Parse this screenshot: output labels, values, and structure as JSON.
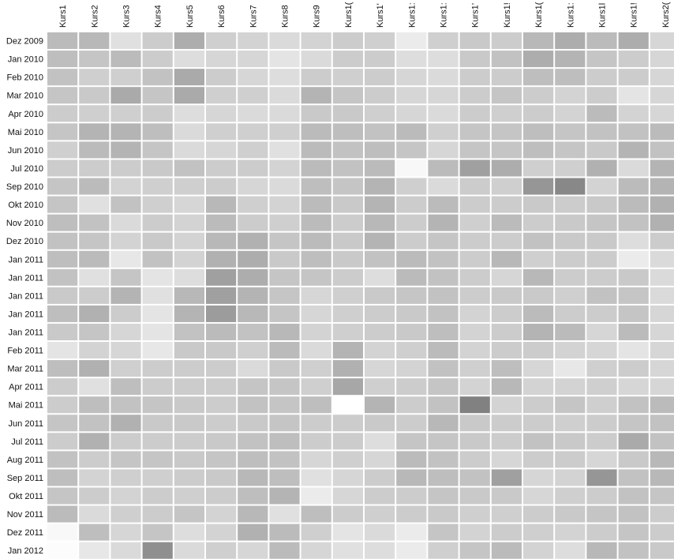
{
  "chart_data": {
    "type": "heatmap",
    "title": "",
    "xlabel": "",
    "ylabel": "",
    "x_categories": [
      "Kurs1",
      "Kurs2",
      "Kurs3",
      "Kurs4",
      "Kurs5",
      "Kurs6",
      "Kurs7",
      "Kurs8",
      "Kurs9",
      "Kurs1(",
      "Kurs1'",
      "Kurs1:",
      "Kurs1:",
      "Kurs1’",
      "Kurs1!",
      "Kurs1(",
      "Kurs1:",
      "Kurs1l",
      "Kurs1!",
      "Kurs2("
    ],
    "y_categories": [
      "Dez 2009",
      "Jan 2010",
      "Feb 2010",
      "Mar 2010",
      "Apr 2010",
      "Mai 2010",
      "Jun 2010",
      "Jul 2010",
      "Sep 2010",
      "Okt 2010",
      "Nov 2010",
      "Dez 2010",
      "Jan 2011",
      "Jan 2011",
      "Jan 2011",
      "Jan 2011",
      "Jan 2011",
      "Feb 2011",
      "Mar 2011",
      "Apr 2011",
      "Mai 2011",
      "Jun 2011",
      "Jul 2011",
      "Aug 2011",
      "Sep 2011",
      "Okt 2011",
      "Nov 2011",
      "Dez 2011",
      "Jan 2012"
    ],
    "color_scale": {
      "low": "#ffffff",
      "high": "#555555"
    },
    "values_range": [
      0,
      1
    ],
    "values": [
      [
        0.4,
        0.42,
        0.18,
        0.3,
        0.48,
        0.28,
        0.26,
        0.22,
        0.26,
        0.3,
        0.28,
        0.12,
        0.28,
        0.32,
        0.3,
        0.42,
        0.48,
        0.4,
        0.48,
        0.24
      ],
      [
        0.38,
        0.34,
        0.4,
        0.3,
        0.2,
        0.24,
        0.24,
        0.16,
        0.22,
        0.3,
        0.3,
        0.2,
        0.2,
        0.32,
        0.36,
        0.48,
        0.44,
        0.34,
        0.3,
        0.24
      ],
      [
        0.36,
        0.28,
        0.28,
        0.36,
        0.5,
        0.3,
        0.24,
        0.2,
        0.3,
        0.28,
        0.3,
        0.24,
        0.22,
        0.3,
        0.3,
        0.38,
        0.38,
        0.3,
        0.3,
        0.24
      ],
      [
        0.34,
        0.32,
        0.5,
        0.34,
        0.5,
        0.28,
        0.28,
        0.22,
        0.44,
        0.34,
        0.3,
        0.24,
        0.24,
        0.3,
        0.34,
        0.3,
        0.26,
        0.3,
        0.16,
        0.24
      ],
      [
        0.3,
        0.28,
        0.28,
        0.3,
        0.2,
        0.24,
        0.22,
        0.22,
        0.32,
        0.32,
        0.28,
        0.24,
        0.22,
        0.3,
        0.28,
        0.3,
        0.26,
        0.4,
        0.26,
        0.24
      ],
      [
        0.34,
        0.44,
        0.44,
        0.38,
        0.22,
        0.28,
        0.28,
        0.28,
        0.4,
        0.38,
        0.36,
        0.4,
        0.28,
        0.34,
        0.34,
        0.38,
        0.34,
        0.36,
        0.36,
        0.4
      ],
      [
        0.28,
        0.4,
        0.44,
        0.34,
        0.22,
        0.24,
        0.28,
        0.18,
        0.4,
        0.36,
        0.38,
        0.34,
        0.24,
        0.34,
        0.34,
        0.38,
        0.34,
        0.32,
        0.44,
        0.36
      ],
      [
        0.3,
        0.3,
        0.3,
        0.32,
        0.36,
        0.3,
        0.3,
        0.26,
        0.4,
        0.36,
        0.4,
        0.04,
        0.4,
        0.56,
        0.48,
        0.28,
        0.28,
        0.46,
        0.22,
        0.44
      ],
      [
        0.34,
        0.4,
        0.26,
        0.28,
        0.28,
        0.3,
        0.24,
        0.22,
        0.38,
        0.34,
        0.44,
        0.28,
        0.22,
        0.3,
        0.28,
        0.62,
        0.7,
        0.26,
        0.4,
        0.44
      ],
      [
        0.34,
        0.18,
        0.36,
        0.28,
        0.24,
        0.42,
        0.28,
        0.26,
        0.4,
        0.32,
        0.44,
        0.3,
        0.4,
        0.3,
        0.3,
        0.32,
        0.3,
        0.32,
        0.4,
        0.46
      ],
      [
        0.38,
        0.36,
        0.22,
        0.3,
        0.26,
        0.4,
        0.3,
        0.28,
        0.4,
        0.3,
        0.42,
        0.3,
        0.44,
        0.28,
        0.4,
        0.3,
        0.32,
        0.34,
        0.36,
        0.46
      ],
      [
        0.36,
        0.34,
        0.26,
        0.32,
        0.26,
        0.42,
        0.46,
        0.34,
        0.4,
        0.32,
        0.44,
        0.3,
        0.34,
        0.3,
        0.3,
        0.36,
        0.32,
        0.32,
        0.2,
        0.3
      ],
      [
        0.38,
        0.4,
        0.14,
        0.36,
        0.26,
        0.46,
        0.48,
        0.32,
        0.38,
        0.32,
        0.36,
        0.4,
        0.36,
        0.3,
        0.42,
        0.28,
        0.3,
        0.3,
        0.12,
        0.22
      ],
      [
        0.36,
        0.18,
        0.34,
        0.16,
        0.2,
        0.56,
        0.48,
        0.34,
        0.34,
        0.3,
        0.2,
        0.4,
        0.36,
        0.3,
        0.24,
        0.42,
        0.3,
        0.3,
        0.32,
        0.22
      ],
      [
        0.32,
        0.3,
        0.44,
        0.18,
        0.42,
        0.56,
        0.44,
        0.34,
        0.24,
        0.28,
        0.32,
        0.34,
        0.36,
        0.3,
        0.32,
        0.32,
        0.28,
        0.36,
        0.34,
        0.22
      ],
      [
        0.38,
        0.46,
        0.3,
        0.16,
        0.44,
        0.58,
        0.42,
        0.34,
        0.24,
        0.28,
        0.3,
        0.32,
        0.36,
        0.26,
        0.3,
        0.4,
        0.3,
        0.3,
        0.34,
        0.24
      ],
      [
        0.32,
        0.34,
        0.24,
        0.16,
        0.36,
        0.4,
        0.36,
        0.42,
        0.26,
        0.28,
        0.3,
        0.32,
        0.38,
        0.26,
        0.3,
        0.44,
        0.4,
        0.24,
        0.4,
        0.24
      ],
      [
        0.16,
        0.26,
        0.24,
        0.14,
        0.32,
        0.32,
        0.28,
        0.4,
        0.22,
        0.44,
        0.26,
        0.28,
        0.4,
        0.26,
        0.3,
        0.3,
        0.26,
        0.24,
        0.16,
        0.24
      ],
      [
        0.38,
        0.46,
        0.28,
        0.3,
        0.3,
        0.3,
        0.22,
        0.32,
        0.28,
        0.46,
        0.24,
        0.26,
        0.36,
        0.28,
        0.38,
        0.24,
        0.14,
        0.28,
        0.3,
        0.24
      ],
      [
        0.3,
        0.18,
        0.38,
        0.3,
        0.3,
        0.3,
        0.34,
        0.34,
        0.28,
        0.52,
        0.28,
        0.3,
        0.34,
        0.26,
        0.42,
        0.26,
        0.26,
        0.28,
        0.24,
        0.24
      ],
      [
        0.3,
        0.38,
        0.36,
        0.34,
        0.32,
        0.3,
        0.36,
        0.34,
        0.38,
        0.0,
        0.44,
        0.3,
        0.36,
        0.74,
        0.26,
        0.3,
        0.34,
        0.28,
        0.36,
        0.4
      ],
      [
        0.34,
        0.36,
        0.46,
        0.32,
        0.32,
        0.3,
        0.32,
        0.34,
        0.3,
        0.3,
        0.32,
        0.3,
        0.42,
        0.32,
        0.3,
        0.3,
        0.28,
        0.3,
        0.34,
        0.36
      ],
      [
        0.3,
        0.46,
        0.3,
        0.3,
        0.3,
        0.32,
        0.36,
        0.38,
        0.3,
        0.3,
        0.2,
        0.34,
        0.34,
        0.32,
        0.3,
        0.36,
        0.32,
        0.3,
        0.5,
        0.36
      ],
      [
        0.36,
        0.3,
        0.34,
        0.34,
        0.32,
        0.34,
        0.38,
        0.36,
        0.24,
        0.28,
        0.24,
        0.4,
        0.36,
        0.3,
        0.24,
        0.3,
        0.3,
        0.24,
        0.32,
        0.42
      ],
      [
        0.38,
        0.26,
        0.28,
        0.28,
        0.3,
        0.32,
        0.42,
        0.38,
        0.18,
        0.24,
        0.3,
        0.42,
        0.38,
        0.36,
        0.56,
        0.24,
        0.26,
        0.62,
        0.36,
        0.42
      ],
      [
        0.34,
        0.3,
        0.26,
        0.3,
        0.28,
        0.3,
        0.38,
        0.44,
        0.12,
        0.24,
        0.3,
        0.3,
        0.34,
        0.32,
        0.32,
        0.24,
        0.28,
        0.3,
        0.36,
        0.34
      ],
      [
        0.4,
        0.22,
        0.28,
        0.3,
        0.34,
        0.26,
        0.42,
        0.18,
        0.38,
        0.3,
        0.28,
        0.3,
        0.32,
        0.28,
        0.28,
        0.3,
        0.32,
        0.34,
        0.36,
        0.3
      ],
      [
        0.04,
        0.38,
        0.24,
        0.34,
        0.2,
        0.26,
        0.46,
        0.4,
        0.28,
        0.16,
        0.22,
        0.12,
        0.34,
        0.26,
        0.3,
        0.28,
        0.26,
        0.3,
        0.34,
        0.3
      ],
      [
        0.02,
        0.14,
        0.22,
        0.66,
        0.22,
        0.28,
        0.24,
        0.4,
        0.24,
        0.18,
        0.2,
        0.12,
        0.28,
        0.34,
        0.4,
        0.26,
        0.2,
        0.42,
        0.36,
        0.32
      ]
    ]
  }
}
